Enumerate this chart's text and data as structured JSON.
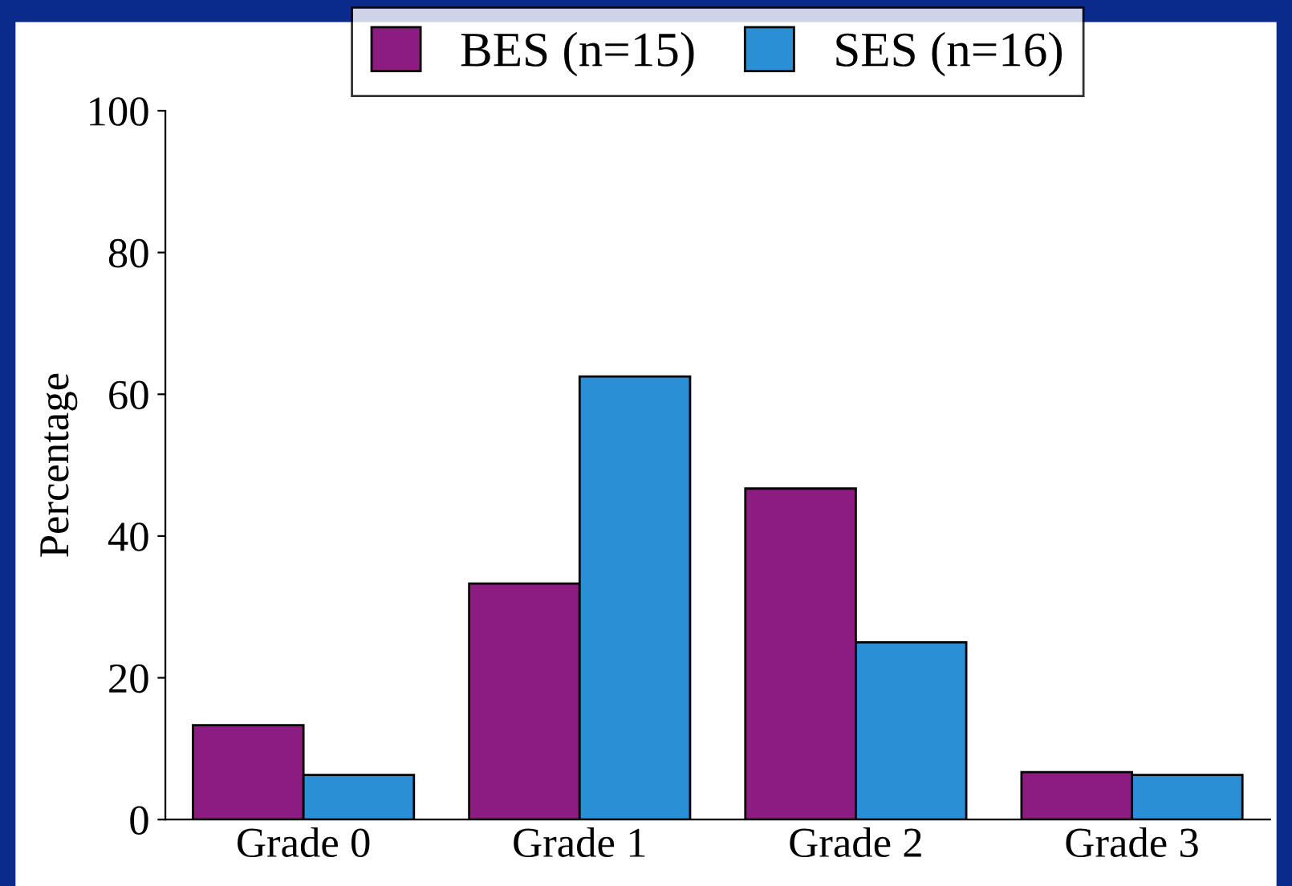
{
  "chart_data": {
    "type": "bar",
    "ylabel": "Percentage",
    "categories": [
      "Grade 0",
      "Grade 1",
      "Grade 2",
      "Grade 3"
    ],
    "series": [
      {
        "name": "BES (n=15)",
        "color": "#8c1c80",
        "values": [
          13.3,
          33.3,
          46.7,
          6.7
        ]
      },
      {
        "name": "SES (n=16)",
        "color": "#2b8fd6",
        "values": [
          6.3,
          62.5,
          25,
          6.3
        ]
      }
    ],
    "ylim": [
      0,
      100
    ],
    "yticks": [
      0,
      20,
      40,
      60,
      80,
      100
    ],
    "grid": false,
    "legend": "top"
  }
}
